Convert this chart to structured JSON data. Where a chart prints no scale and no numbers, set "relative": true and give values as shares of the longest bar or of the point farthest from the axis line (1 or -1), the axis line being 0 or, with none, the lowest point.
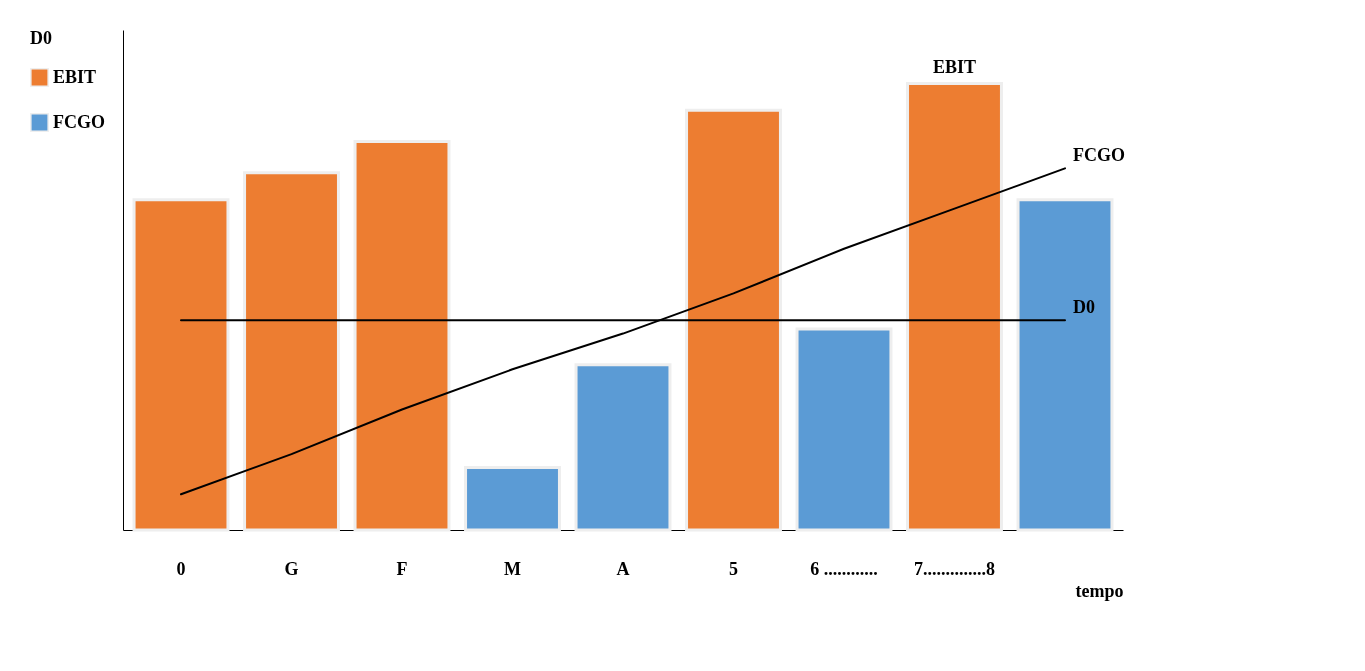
{
  "chart_data": {
    "type": "bar",
    "relative": true,
    "xlabel": "tempo",
    "legend_title": "D0",
    "legend": "left",
    "marker": "none",
    "line_style": "solid",
    "categories": [
      "0",
      "G",
      "F",
      "M",
      "A",
      "5",
      "6 ............",
      "7..............8",
      null
    ],
    "series": [
      {
        "name": "EBIT",
        "color": "#ed7d31",
        "values": [
          0.74,
          0.8,
          0.87,
          null,
          null,
          0.94,
          null,
          1,
          null
        ]
      },
      {
        "name": "FCGO",
        "color": "#5b9bd5",
        "values": [
          null,
          null,
          null,
          0.14,
          0.37,
          null,
          0.45,
          null,
          0.74
        ]
      },
      {
        "name": "FCGO",
        "type": "line",
        "color": "#000000",
        "values": [
          0.08,
          0.17,
          0.27,
          0.36,
          0.44,
          0.53,
          0.63,
          0.72,
          0.81
        ]
      },
      {
        "name": "D0",
        "type": "line",
        "color": "#000000",
        "values": [
          0.47,
          0.47,
          0.47,
          0.47,
          0.47,
          0.47,
          0.47,
          0.47,
          0.47
        ]
      }
    ],
    "annotations": [
      {
        "text": "EBIT",
        "x": "7..............8",
        "y": 1
      }
    ]
  }
}
